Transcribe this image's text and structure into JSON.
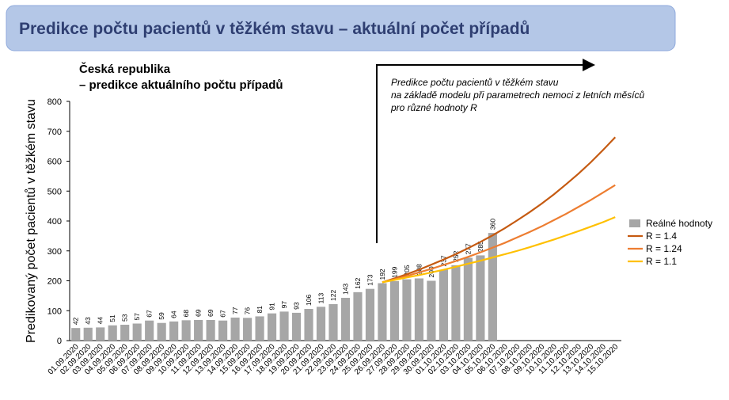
{
  "header": {
    "title": "Predikce počtu pacientů v těžkém stavu – aktuální počet případů"
  },
  "chart_data": {
    "type": "combo",
    "title_lines": [
      "Česká republika",
      "– predikce aktuálního počtu případů"
    ],
    "annotation_lines": [
      "Predikce počtu pacientů v těžkém stavu",
      "na základě modelu při parametrech nemoci z letních měsíců",
      "pro různé hodnoty R"
    ],
    "ylabel": "Predikovaný počet pacientů v těžkém stavu",
    "categories": [
      "01.09.2020",
      "02.09.2020",
      "03.09.2020",
      "04.09.2020",
      "05.09.2020",
      "06.09.2020",
      "07.09.2020",
      "08.09.2020",
      "09.09.2020",
      "10.09.2020",
      "11.09.2020",
      "12.09.2020",
      "13.09.2020",
      "14.09.2020",
      "15.09.2020",
      "16.09.2020",
      "17.09.2020",
      "18.09.2020",
      "19.09.2020",
      "20.09.2020",
      "21.09.2020",
      "22.09.2020",
      "23.09.2020",
      "24.09.2020",
      "25.09.2020",
      "26.09.2020",
      "27.09.2020",
      "28.09.2020",
      "29.09.2020",
      "30.09.2020",
      "01.10.2020",
      "02.10.2020",
      "03.10.2020",
      "04.10.2020",
      "05.10.2020",
      "06.10.2020",
      "07.10.2020",
      "08.10.2020",
      "09.10.2020",
      "10.10.2020",
      "11.10.2020",
      "12.10.2020",
      "13.10.2020",
      "14.10.2020",
      "15.10.2020"
    ],
    "series": [
      {
        "name": "Reálné hodnoty",
        "type": "bar",
        "color": "#a6a6a6",
        "values": [
          42,
          43,
          44,
          51,
          53,
          57,
          67,
          59,
          64,
          68,
          69,
          69,
          67,
          77,
          76,
          81,
          91,
          97,
          93,
          106,
          113,
          122,
          143,
          162,
          173,
          192,
          199,
          205,
          208,
          200,
          237,
          252,
          277,
          285,
          360,
          null,
          null,
          null,
          null,
          null,
          null,
          null,
          null,
          null,
          null
        ]
      },
      {
        "name": "R = 1.4",
        "type": "line",
        "color": "#c55a11",
        "values": [
          null,
          null,
          null,
          null,
          null,
          null,
          null,
          null,
          null,
          null,
          null,
          null,
          null,
          null,
          null,
          null,
          null,
          null,
          null,
          null,
          null,
          null,
          null,
          null,
          null,
          195,
          208,
          222,
          237,
          254,
          271,
          289,
          309,
          330,
          352,
          376,
          402,
          429,
          458,
          489,
          523,
          558,
          596,
          637,
          680
        ]
      },
      {
        "name": "R = 1.24",
        "type": "line",
        "color": "#ed7d31",
        "values": [
          null,
          null,
          null,
          null,
          null,
          null,
          null,
          null,
          null,
          null,
          null,
          null,
          null,
          null,
          null,
          null,
          null,
          null,
          null,
          null,
          null,
          null,
          null,
          null,
          null,
          195,
          205,
          216,
          228,
          240,
          253,
          266,
          280,
          295,
          311,
          327,
          345,
          363,
          382,
          403,
          424,
          447,
          470,
          495,
          520
        ]
      },
      {
        "name": "R = 1.1",
        "type": "line",
        "color": "#ffc000",
        "values": [
          null,
          null,
          null,
          null,
          null,
          null,
          null,
          null,
          null,
          null,
          null,
          null,
          null,
          null,
          null,
          null,
          null,
          null,
          null,
          null,
          null,
          null,
          null,
          null,
          null,
          195,
          203,
          211,
          219,
          228,
          237,
          247,
          257,
          267,
          278,
          289,
          300,
          312,
          325,
          338,
          352,
          366,
          381,
          396,
          413
        ]
      }
    ],
    "ylim": [
      0,
      800
    ],
    "yticks": [
      0,
      100,
      200,
      300,
      400,
      500,
      600,
      700,
      800
    ],
    "legend": "right"
  }
}
